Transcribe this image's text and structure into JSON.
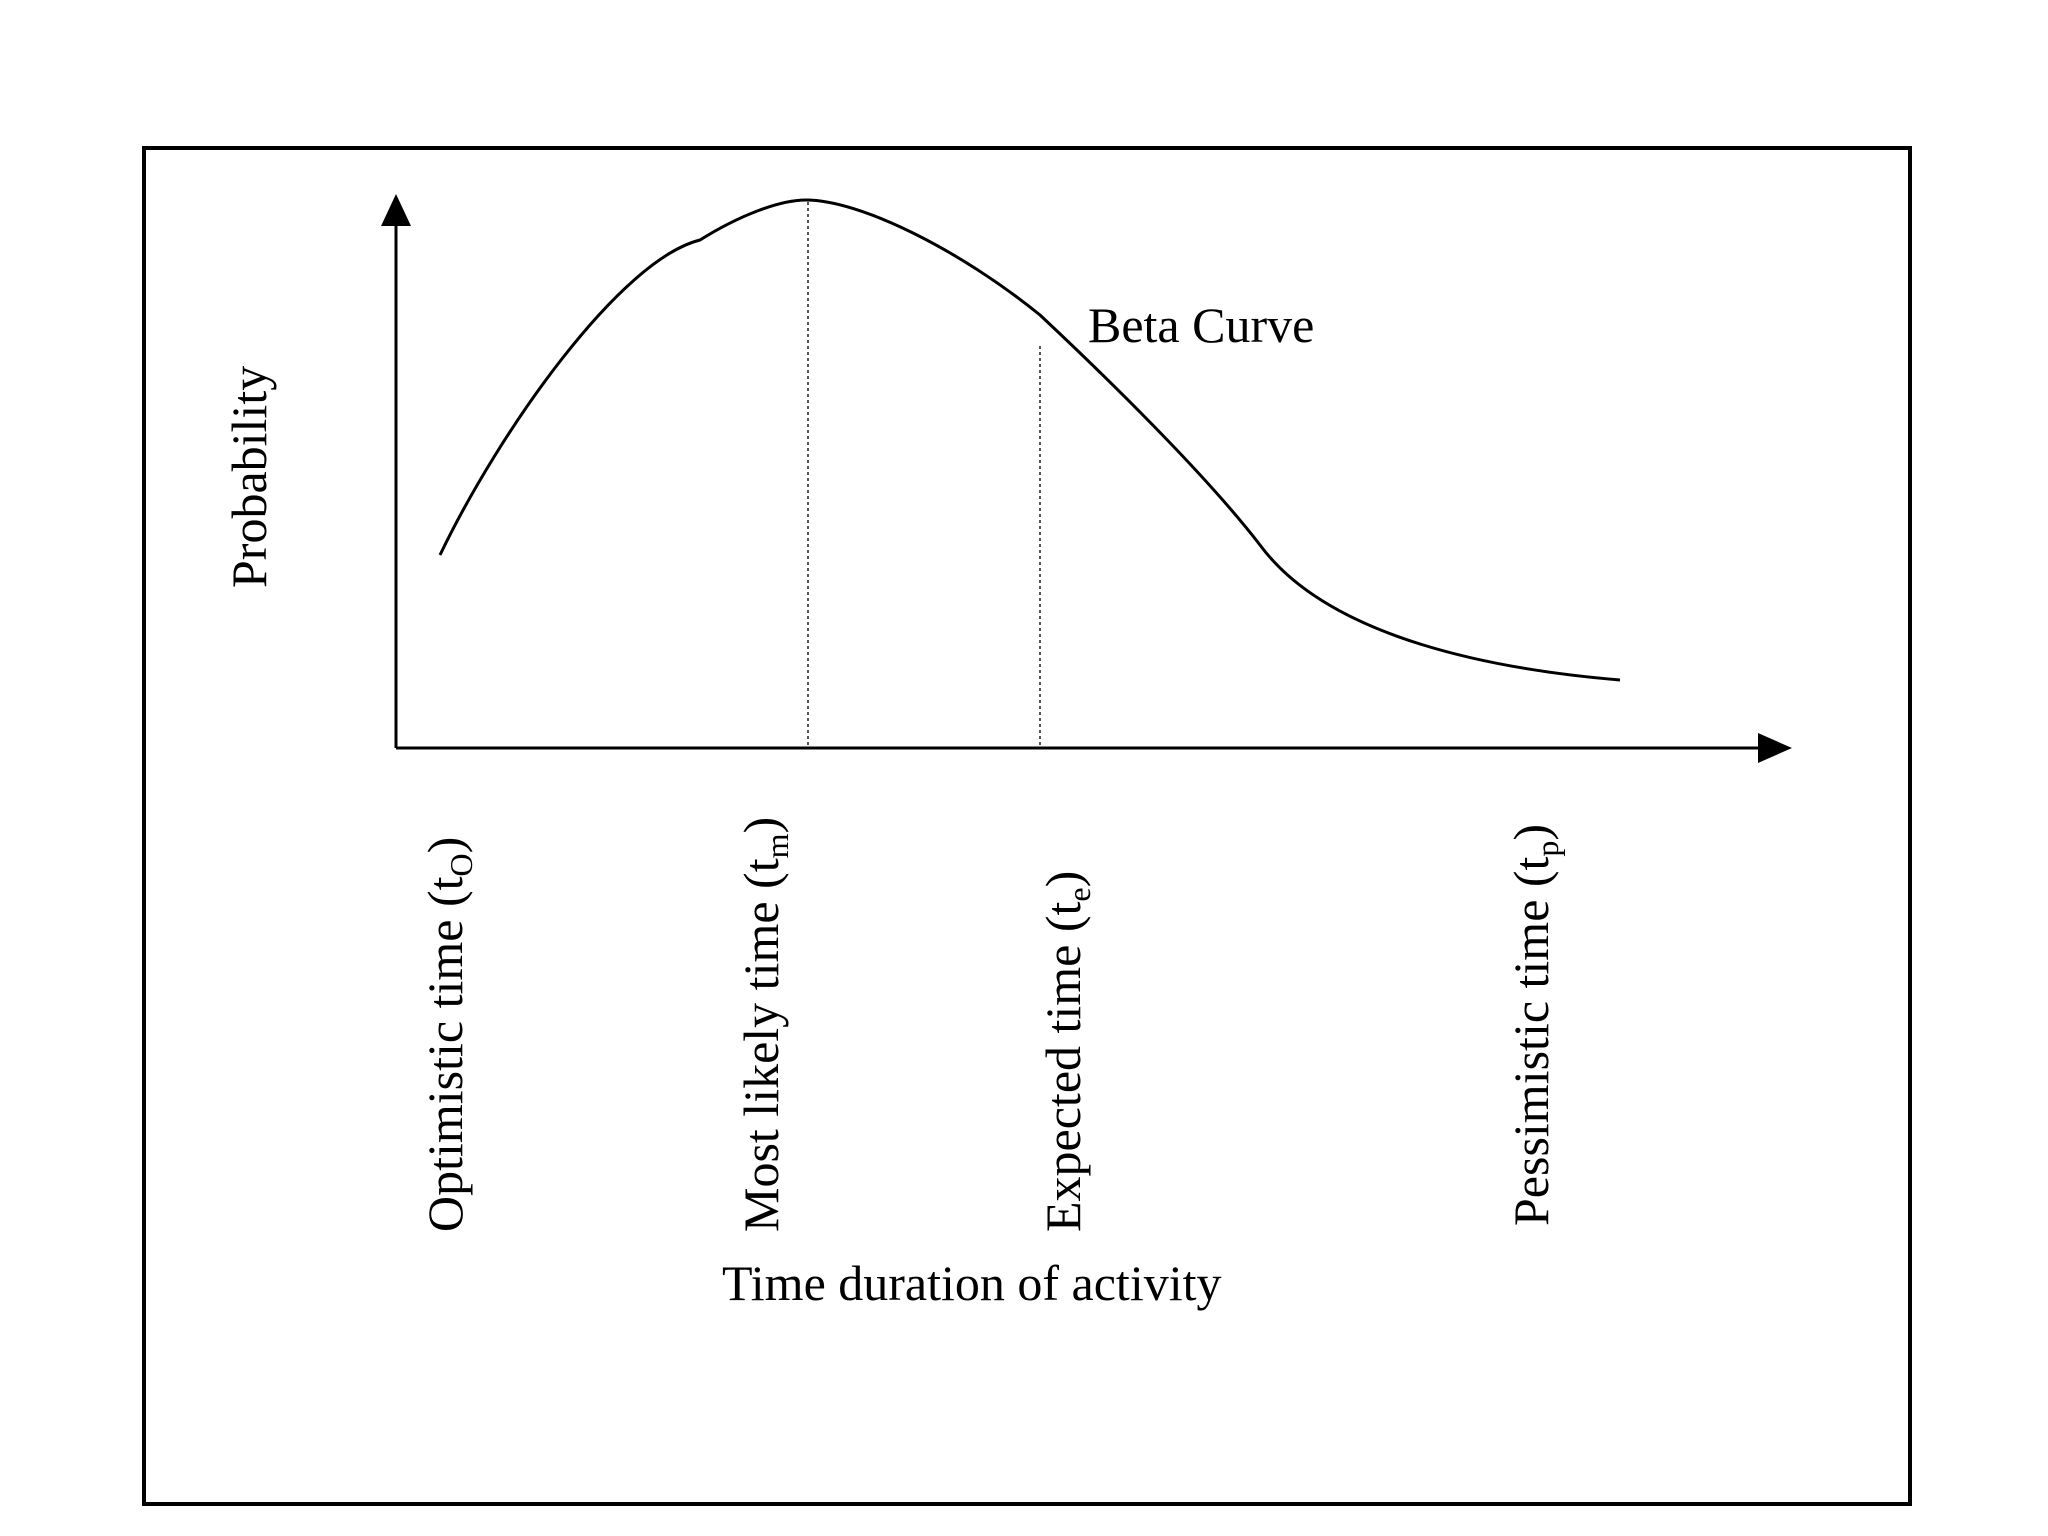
{
  "diagram": {
    "y_axis_label": "Probability",
    "x_axis_label": "Time duration of activity",
    "curve_label": "Beta Curve",
    "times": [
      {
        "key": "optimistic",
        "label": "Optimistic time (t",
        "subscript": "O",
        "close": ")"
      },
      {
        "key": "most_likely",
        "label": "Most likely time (t",
        "subscript": "m",
        "close": ")"
      },
      {
        "key": "expected",
        "label": "Expected time (t",
        "subscript": "e",
        "close": ")"
      },
      {
        "key": "pessimistic",
        "label": "Pessimistic time (t",
        "subscript": "p",
        "close": ")"
      }
    ]
  },
  "colors": {
    "line": "#000000",
    "guide": "#555555",
    "background": "#ffffff"
  }
}
